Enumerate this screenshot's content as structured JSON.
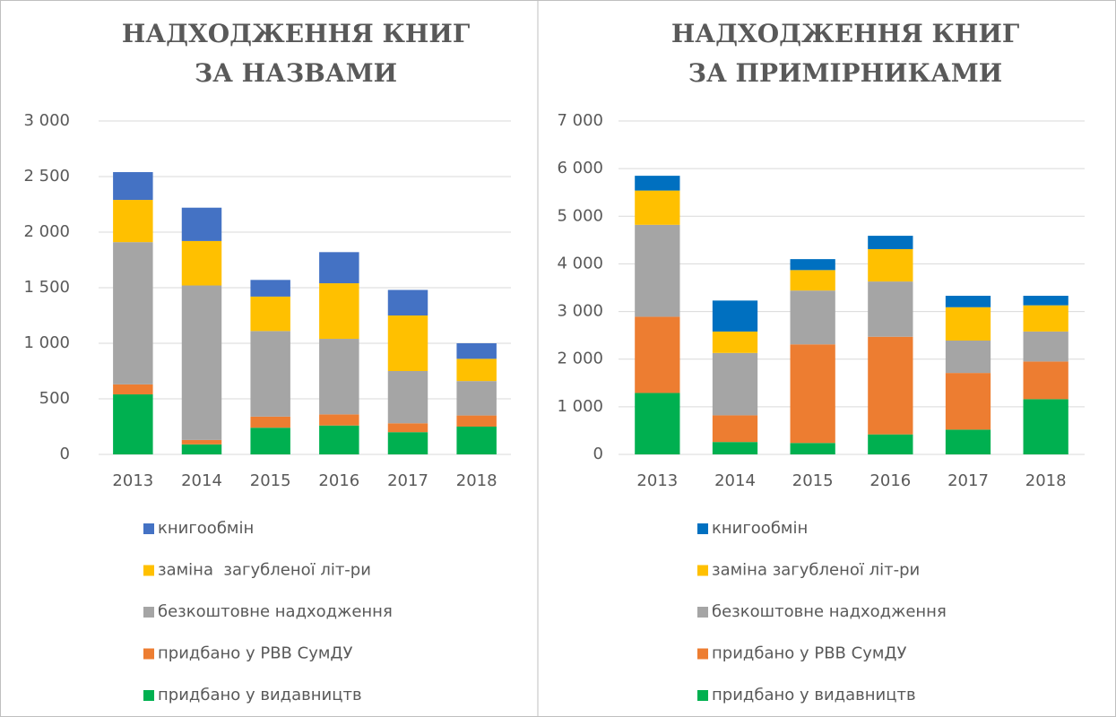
{
  "chart_data": [
    {
      "type": "bar",
      "stacked": true,
      "title": "НАДХОДЖЕННЯ КНИГ ЗА НАЗВАМИ",
      "categories": [
        "2013",
        "2014",
        "2015",
        "2016",
        "2017",
        "2018"
      ],
      "series": [
        {
          "name": "придбано у видавництв",
          "color": "#00b050",
          "values": [
            540,
            90,
            240,
            260,
            200,
            250
          ]
        },
        {
          "name": "придбано у РВВ СумДУ",
          "color": "#ed7d31",
          "values": [
            90,
            40,
            100,
            100,
            80,
            100
          ]
        },
        {
          "name": "безкоштовне надходження",
          "color": "#a5a5a5",
          "values": [
            1280,
            1390,
            770,
            680,
            470,
            310
          ]
        },
        {
          "name": "заміна  загубленої літ-ри",
          "color": "#ffc000",
          "values": [
            380,
            400,
            310,
            500,
            500,
            200
          ]
        },
        {
          "name": "книгообмін",
          "color": "#4472c4",
          "values": [
            250,
            300,
            150,
            280,
            230,
            140
          ]
        }
      ],
      "ylim": [
        0,
        3000
      ],
      "yticks": [
        0,
        500,
        {
          "value": 1000,
          "label": "1 000"
        },
        {
          "value": 1500,
          "label": "1 500"
        },
        {
          "value": 2000,
          "label": "2 000"
        },
        {
          "value": 2500,
          "label": "2 500"
        },
        {
          "value": 3000,
          "label": "3 000"
        }
      ],
      "grid": true
    },
    {
      "type": "bar",
      "stacked": true,
      "title": "НАДХОДЖЕННЯ КНИГ ЗА ПРИМІРНИКАМИ",
      "categories": [
        "2013",
        "2014",
        "2015",
        "2016",
        "2017",
        "2018"
      ],
      "series": [
        {
          "name": "придбано у видавництв",
          "color": "#00b050",
          "values": [
            1290,
            260,
            240,
            420,
            520,
            1160
          ]
        },
        {
          "name": "придбано у РВВ СумДУ",
          "color": "#ed7d31",
          "values": [
            1600,
            560,
            2070,
            2050,
            1190,
            790
          ]
        },
        {
          "name": "безкоштовне надходження",
          "color": "#a5a5a5",
          "values": [
            1930,
            1310,
            1130,
            1160,
            680,
            630
          ]
        },
        {
          "name": "заміна загубленої літ-ри",
          "color": "#ffc000",
          "values": [
            720,
            450,
            430,
            680,
            700,
            550
          ]
        },
        {
          "name": "книгообмін",
          "color": "#0070c0",
          "values": [
            310,
            650,
            230,
            280,
            240,
            200
          ]
        }
      ],
      "ylim": [
        0,
        7000
      ],
      "yticks": [
        0,
        {
          "value": 1000,
          "label": "1 000"
        },
        {
          "value": 2000,
          "label": "2 000"
        },
        {
          "value": 3000,
          "label": "3 000"
        },
        {
          "value": 4000,
          "label": "4 000"
        },
        {
          "value": 5000,
          "label": "5 000"
        },
        {
          "value": 6000,
          "label": "6 000"
        },
        {
          "value": 7000,
          "label": "7 000"
        }
      ],
      "grid": true
    }
  ]
}
